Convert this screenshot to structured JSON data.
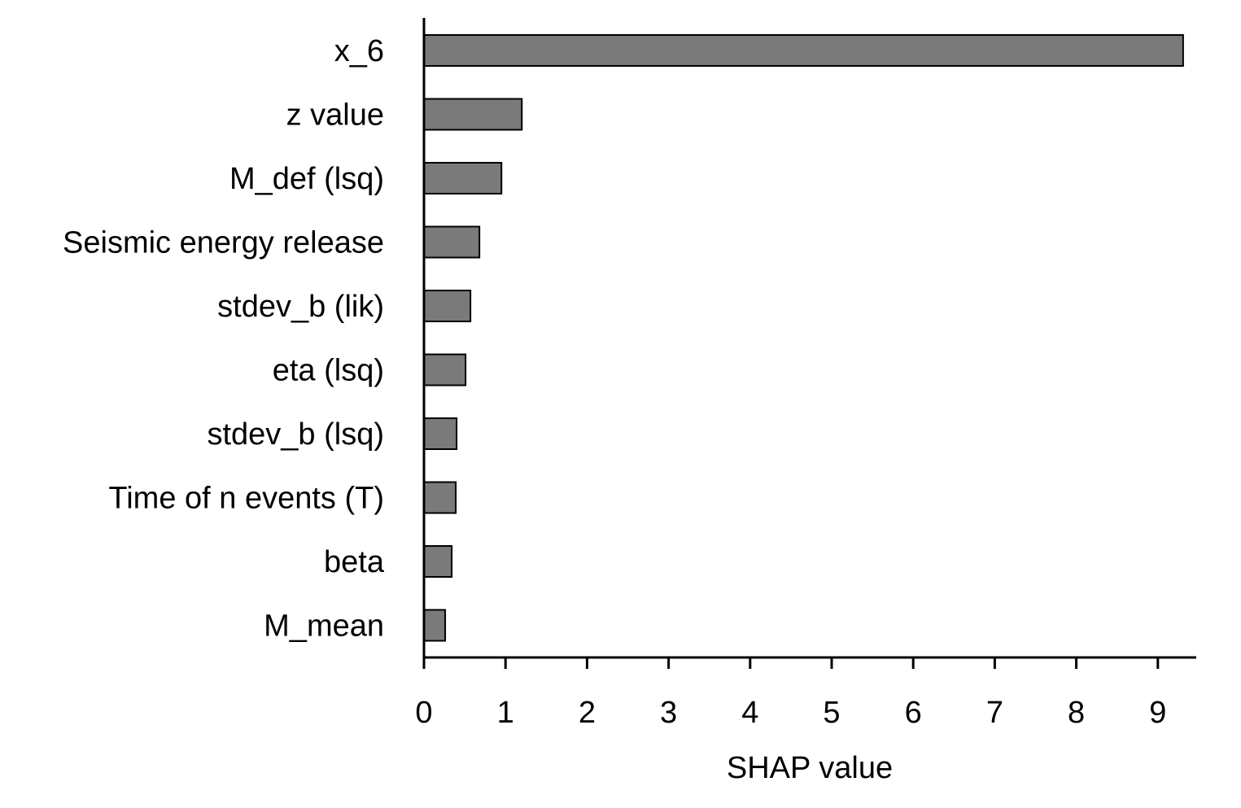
{
  "chart_data": {
    "type": "bar",
    "orientation": "horizontal",
    "categories": [
      "x_6",
      "z value",
      "M_def (lsq)",
      "Seismic energy release",
      "stdev_b (lik)",
      "eta (lsq)",
      "stdev_b (lsq)",
      "Time of n events (T)",
      "beta",
      "M_mean"
    ],
    "values": [
      9.31,
      1.2,
      0.95,
      0.68,
      0.57,
      0.51,
      0.4,
      0.39,
      0.34,
      0.26
    ],
    "title": "",
    "xlabel": "SHAP value",
    "ylabel": "",
    "xlim": [
      0,
      9.5
    ],
    "xticks": [
      "0",
      "1",
      "2",
      "3",
      "4",
      "5",
      "6",
      "7",
      "8",
      "9"
    ],
    "grid": false,
    "legend": "none",
    "colors": {
      "bar_fill": "#7a7a7a",
      "bar_stroke": "#000000",
      "axis": "#000000"
    }
  }
}
